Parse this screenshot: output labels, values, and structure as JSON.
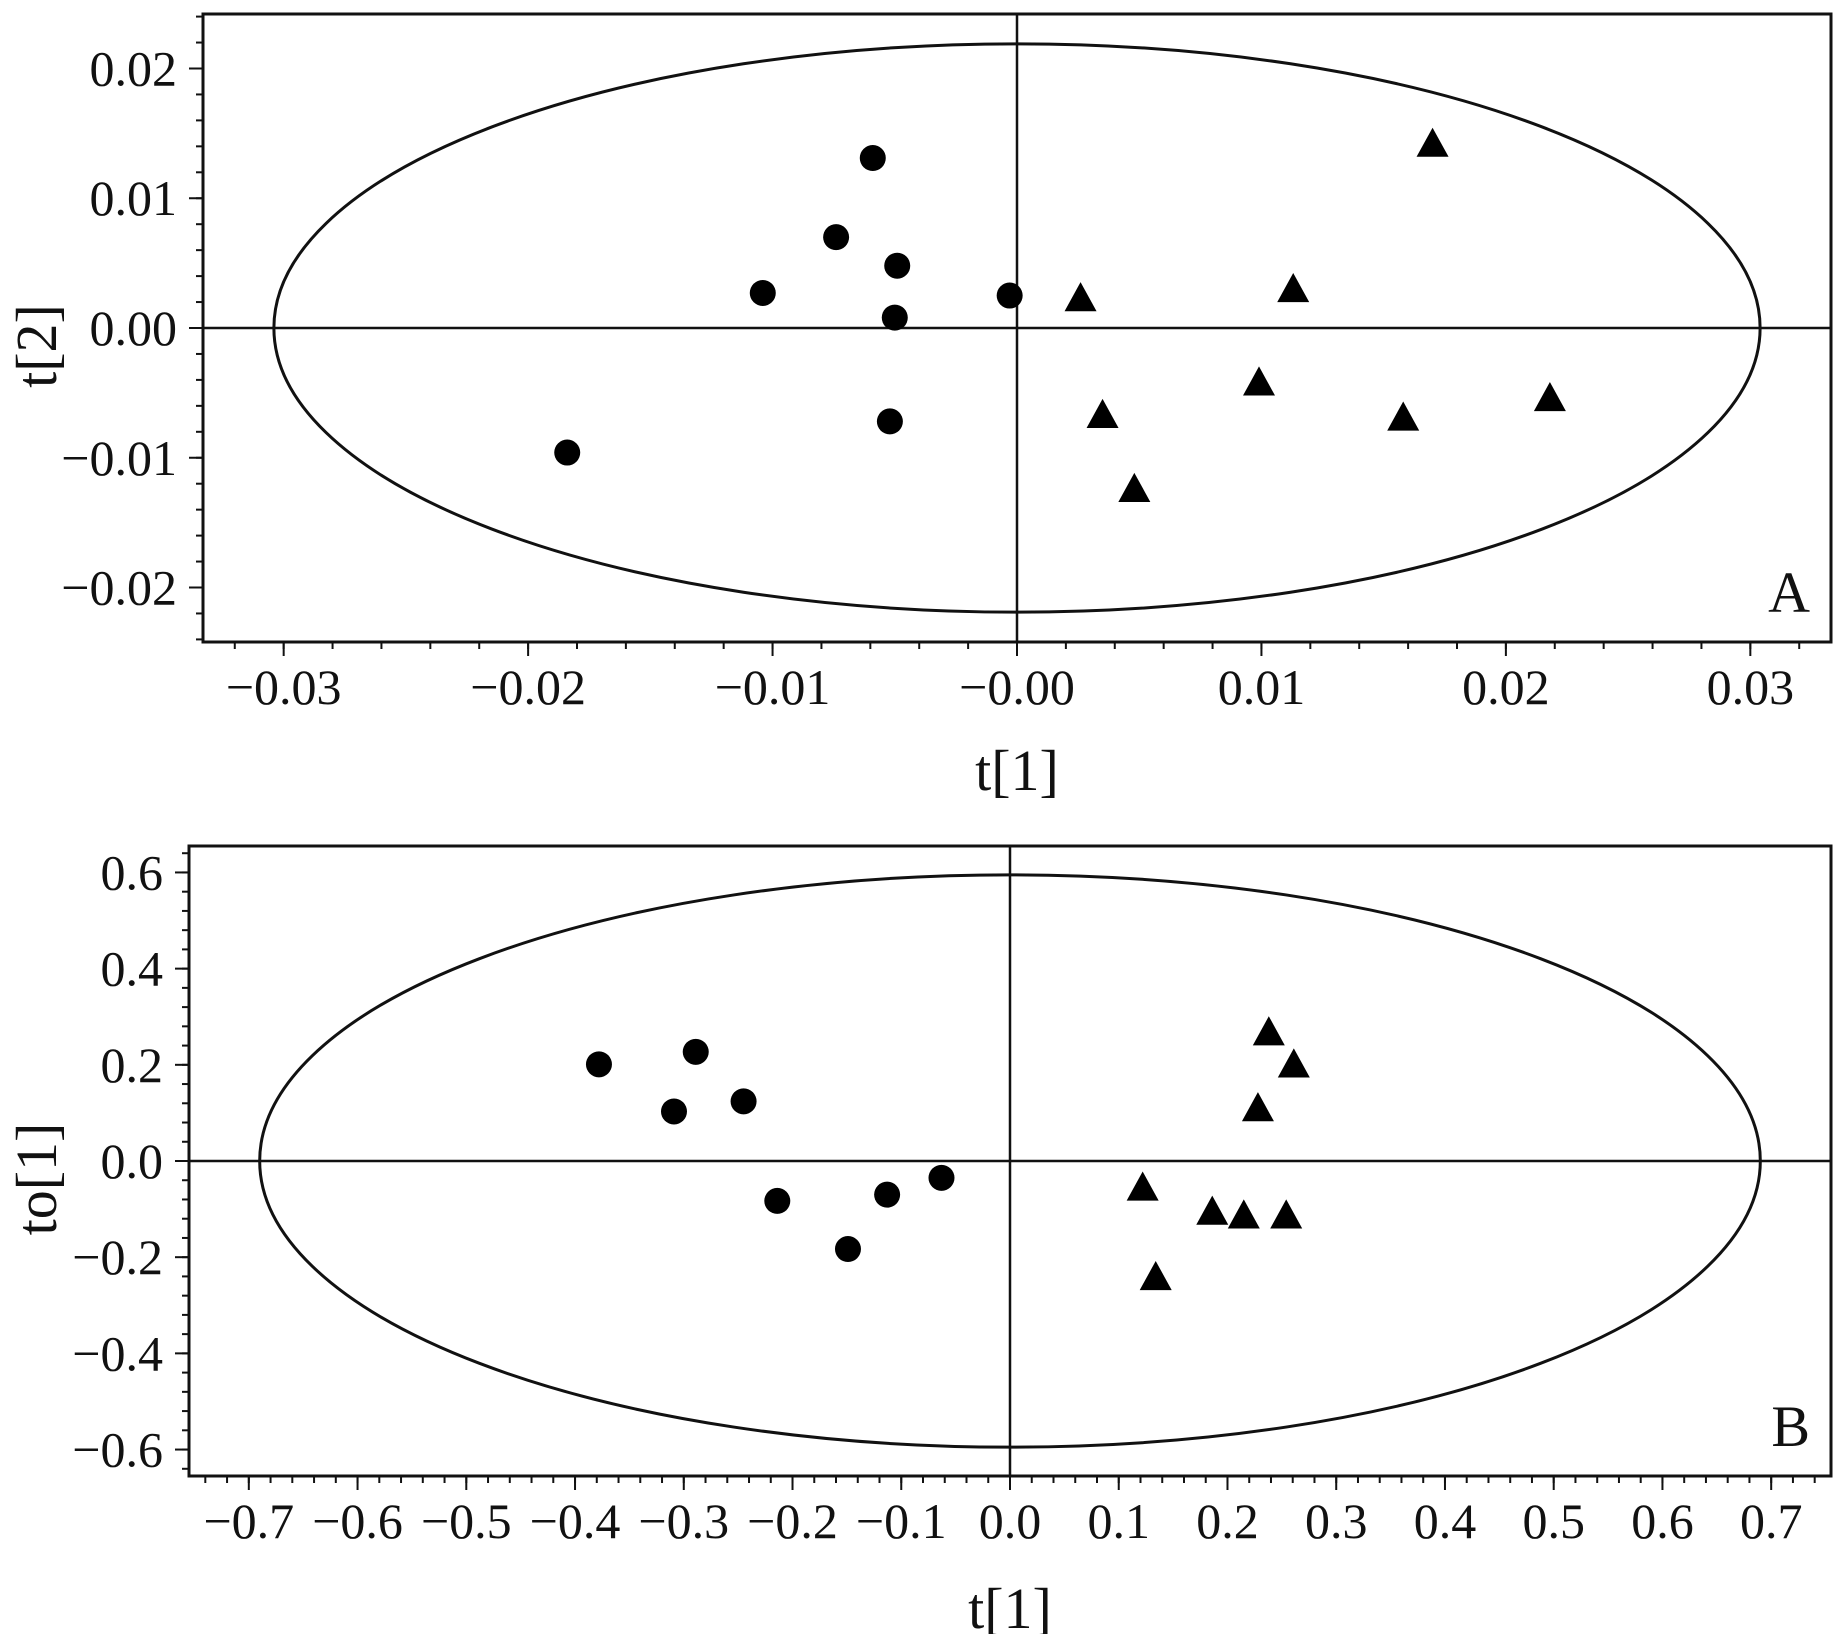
{
  "chart_data": [
    {
      "type": "scatter",
      "panel_label": "A",
      "xlabel": "t[1]",
      "ylabel": "t[2]",
      "xlim": [
        -0.0333,
        0.0333
      ],
      "ylim": [
        -0.0242,
        0.0242
      ],
      "x_ticks": [
        -0.03,
        -0.02,
        -0.01,
        0.0,
        0.01,
        0.02,
        0.03
      ],
      "x_tick_labels": [
        "−0.03",
        "−0.02",
        "−0.01",
        "−0.00",
        "0.01",
        "0.02",
        "0.03"
      ],
      "y_ticks": [
        0.02,
        0.01,
        0.0,
        -0.01,
        -0.02
      ],
      "y_tick_labels": [
        "0.02",
        "0.01",
        "0.00",
        "−0.01",
        "−0.02"
      ],
      "ellipse": {
        "rx": 0.0304,
        "ry": 0.0219
      },
      "grid": false,
      "legend": "none",
      "series": [
        {
          "marker": "circle",
          "x": [
            -0.0059,
            -0.0074,
            -0.0049,
            -0.0104,
            -0.005,
            -0.0003,
            -0.0052,
            -0.0184
          ],
          "y": [
            0.0131,
            0.007,
            0.0048,
            0.0027,
            0.0008,
            0.0025,
            -0.0072,
            -0.0096
          ]
        },
        {
          "marker": "triangle",
          "x": [
            0.017,
            0.0026,
            0.0113,
            0.0099,
            0.0035,
            0.0158,
            0.0218,
            0.0048
          ],
          "y": [
            0.0141,
            0.0022,
            0.0029,
            -0.0043,
            -0.0068,
            -0.007,
            -0.0055,
            -0.0125
          ]
        }
      ]
    },
    {
      "type": "scatter",
      "panel_label": "B",
      "xlabel": "t[1]",
      "ylabel": "to[1]",
      "xlim": [
        -0.755,
        0.755
      ],
      "ylim": [
        -0.655,
        0.655
      ],
      "x_ticks": [
        -0.7,
        -0.6,
        -0.5,
        -0.4,
        -0.3,
        -0.2,
        -0.1,
        0.0,
        0.1,
        0.2,
        0.3,
        0.4,
        0.5,
        0.6,
        0.7
      ],
      "x_tick_labels": [
        "−0.7",
        "−0.6",
        "−0.5",
        "−0.4",
        "−0.3",
        "−0.2",
        "−0.1",
        "0.0",
        "0.1",
        "0.2",
        "0.3",
        "0.4",
        "0.5",
        "0.6",
        "0.7"
      ],
      "y_ticks": [
        0.6,
        0.4,
        0.2,
        0.0,
        -0.2,
        -0.4,
        -0.6
      ],
      "y_tick_labels": [
        "0.6",
        "0.4",
        "0.2",
        "0.0",
        "−0.2",
        "−0.4",
        "−0.6"
      ],
      "ellipse": {
        "rx": 0.69,
        "ry": 0.595
      },
      "grid": false,
      "legend": "none",
      "series": [
        {
          "marker": "circle",
          "x": [
            -0.378,
            -0.289,
            -0.309,
            -0.245,
            -0.214,
            -0.063,
            -0.113,
            -0.149
          ],
          "y": [
            0.201,
            0.227,
            0.103,
            0.124,
            -0.083,
            -0.035,
            -0.07,
            -0.183
          ]
        },
        {
          "marker": "triangle",
          "x": [
            0.238,
            0.261,
            0.228,
            0.122,
            0.186,
            0.215,
            0.254,
            0.134
          ],
          "y": [
            0.265,
            0.198,
            0.107,
            -0.058,
            -0.108,
            -0.116,
            -0.116,
            -0.244
          ]
        }
      ]
    }
  ]
}
